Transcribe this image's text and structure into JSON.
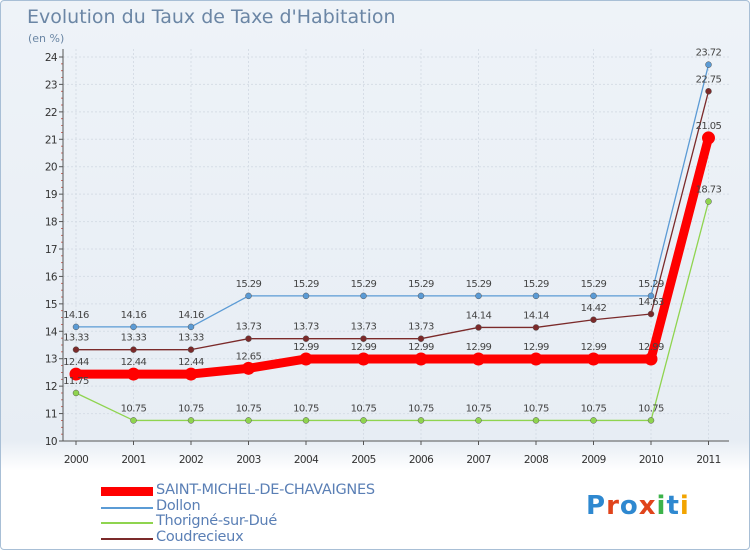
{
  "header": {
    "title": "Evolution du Taux de Taxe d'Habitation",
    "subtitle": "(en %)"
  },
  "logo": {
    "text": "Proxiti",
    "letter_colors": [
      "#2e88d0",
      "#e0441b",
      "#2e88d0",
      "#e0441b",
      "#3cb34a",
      "#2e88d0",
      "#f2a400"
    ]
  },
  "chart_data": {
    "type": "line",
    "title": "Evolution du Taux de Taxe d'Habitation",
    "ylabel": "(en %)",
    "xlabel": "",
    "x": [
      "2000",
      "2001",
      "2002",
      "2003",
      "2004",
      "2005",
      "2006",
      "2007",
      "2008",
      "2009",
      "2010",
      "2011"
    ],
    "ylim": [
      10,
      24
    ],
    "yticks": [
      10,
      11,
      12,
      13,
      14,
      15,
      16,
      17,
      18,
      19,
      20,
      21,
      22,
      23,
      24
    ],
    "grid": true,
    "legend_position": "bottom-left",
    "series": [
      {
        "name": "SAINT-MICHEL-DE-CHAVAIGNES",
        "color": "#ff0000",
        "values": [
          12.44,
          12.44,
          12.44,
          12.65,
          12.99,
          12.99,
          12.99,
          12.99,
          12.99,
          12.99,
          12.99,
          21.05
        ],
        "labels": [
          "12.44",
          "12.44",
          "12.44",
          "12.65",
          "12.99",
          "12.99",
          "12.99",
          "12.99",
          "12.99",
          "12.99",
          "12.99",
          "21.05"
        ]
      },
      {
        "name": "Dollon",
        "color": "#5b9bd5",
        "values": [
          14.16,
          14.16,
          14.16,
          15.29,
          15.29,
          15.29,
          15.29,
          15.29,
          15.29,
          15.29,
          15.29,
          23.72
        ],
        "labels": [
          "14.16",
          "14.16",
          "14.16",
          "15.29",
          "15.29",
          "15.29",
          "15.29",
          "15.29",
          "15.29",
          "15.29",
          "15.29",
          "23.72"
        ]
      },
      {
        "name": "Thorigné-sur-Dué",
        "color": "#8fd44f",
        "values": [
          11.75,
          10.75,
          10.75,
          10.75,
          10.75,
          10.75,
          10.75,
          10.75,
          10.75,
          10.75,
          10.75,
          18.73
        ],
        "labels": [
          "11.75",
          "10.75",
          "10.75",
          "10.75",
          "10.75",
          "10.75",
          "10.75",
          "10.75",
          "10.75",
          "10.75",
          "10.75",
          "18.73"
        ]
      },
      {
        "name": "Coudrecieux",
        "color": "#7b2a2a",
        "values": [
          13.33,
          13.33,
          13.33,
          13.73,
          13.73,
          13.73,
          13.73,
          14.14,
          14.14,
          14.42,
          14.63,
          22.75
        ],
        "labels": [
          "13.33",
          "13.33",
          "13.33",
          "13.73",
          "13.73",
          "13.73",
          "13.73",
          "14.14",
          "14.14",
          "14.42",
          "14.63",
          "22.75"
        ]
      }
    ]
  }
}
